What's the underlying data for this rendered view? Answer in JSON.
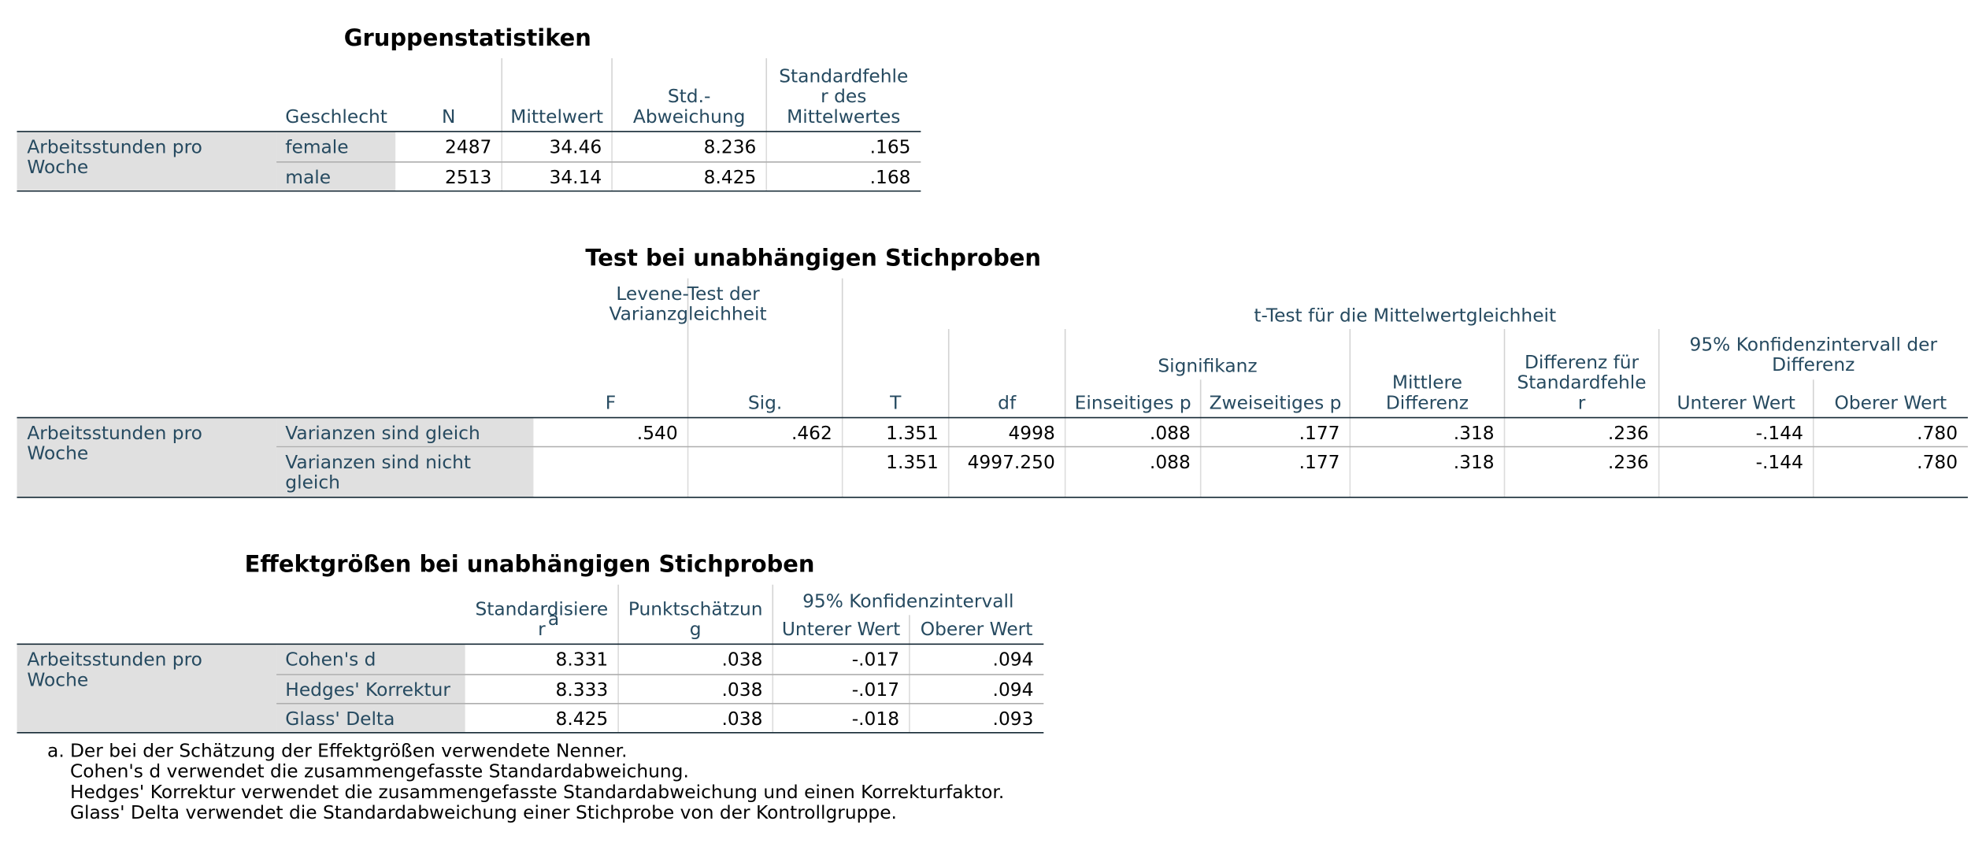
{
  "group_stats": {
    "title": "Gruppenstatistiken",
    "columns": [
      [
        "Geschlecht"
      ],
      [
        "N"
      ],
      [
        "Mittelwert"
      ],
      [
        "Std.-",
        "Abweichung"
      ],
      [
        "Standardfehle",
        "r des",
        "Mittelwertes"
      ]
    ],
    "row_label": [
      "Arbeitsstunden pro",
      "Woche"
    ],
    "rows": [
      {
        "label": [
          "female"
        ],
        "cells": [
          "2487",
          "34.46",
          "8.236",
          ".165"
        ]
      },
      {
        "label": [
          "male"
        ],
        "cells": [
          "2513",
          "34.14",
          "8.425",
          ".168"
        ]
      }
    ]
  },
  "t_test": {
    "title": "Test bei unabhängigen Stichproben",
    "groups": [
      [
        "Levene-Test der",
        "Varianzgleichheit"
      ],
      [
        "t-Test für die Mittelwertgleichheit"
      ],
      [
        "Signifikanz"
      ],
      [
        "95% Konfidenzintervall der",
        "Differenz"
      ]
    ],
    "columns": [
      [
        "F"
      ],
      [
        "Sig."
      ],
      [
        "T"
      ],
      [
        "df"
      ],
      [
        "Einseitiges p"
      ],
      [
        "Zweiseitiges p"
      ],
      [
        "Mittlere",
        "Differenz"
      ],
      [
        "Differenz für",
        "Standardfehle",
        "r"
      ],
      [
        "Unterer Wert"
      ],
      [
        "Oberer Wert"
      ]
    ],
    "row_label": [
      "Arbeitsstunden pro",
      "Woche"
    ],
    "rows": [
      {
        "label": [
          "Varianzen sind gleich"
        ],
        "cells": [
          ".540",
          ".462",
          "1.351",
          "4998",
          ".088",
          ".177",
          ".318",
          ".236",
          "-.144",
          ".780"
        ]
      },
      {
        "label": [
          "Varianzen sind nicht",
          "gleich"
        ],
        "cells": [
          null,
          null,
          "1.351",
          "4997.250",
          ".088",
          ".177",
          ".318",
          ".236",
          "-.144",
          ".780"
        ]
      }
    ]
  },
  "effect_sizes": {
    "title": "Effektgrößen bei unabhängigen Stichproben",
    "groups": [
      [
        "95% Konfidenzintervall"
      ]
    ],
    "columns": [
      [
        "Standardisiere",
        "r"
      ],
      [
        "Punktschätzun",
        "g"
      ],
      [
        "Unterer Wert"
      ],
      [
        "Oberer Wert"
      ]
    ],
    "marker": "a",
    "row_label": [
      "Arbeitsstunden pro",
      "Woche"
    ],
    "rows": [
      {
        "label": [
          "Cohen's d"
        ],
        "cells": [
          "8.331",
          ".038",
          "-.017",
          ".094"
        ]
      },
      {
        "label": [
          "Hedges' Korrektur"
        ],
        "cells": [
          "8.333",
          ".038",
          "-.017",
          ".094"
        ]
      },
      {
        "label": [
          "Glass' Delta"
        ],
        "cells": [
          "8.425",
          ".038",
          "-.018",
          ".093"
        ]
      }
    ],
    "footnote": {
      "marker": "a.",
      "lines": [
        "Der bei der Schätzung der Effektgrößen verwendete Nenner.",
        "Cohen's d verwendet die zusammengefasste Standardabweichung.",
        "Hedges' Korrektur verwendet die zusammengefasste Standardabweichung und einen Korrekturfaktor.",
        "Glass' Delta verwendet die Standardabweichung einer Stichprobe von der Kontrollgruppe."
      ]
    }
  }
}
